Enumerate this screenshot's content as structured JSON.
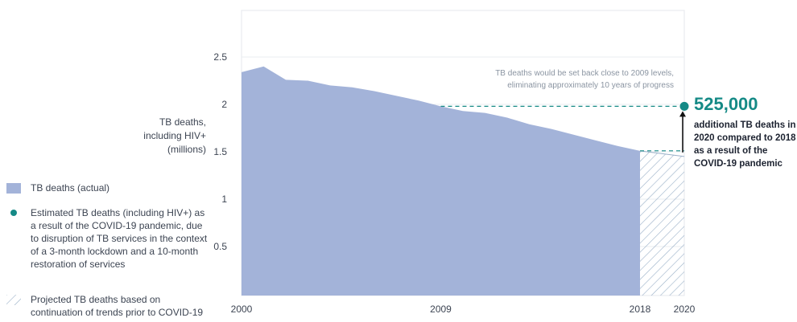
{
  "chart_data": {
    "type": "area",
    "ylabel": "TB deaths,\nincluding HIV+\n(millions)",
    "ylim": [
      0,
      3
    ],
    "y_ticks": [
      "0.5",
      "1",
      "1.5",
      "2",
      "2.5"
    ],
    "y_tick_values": [
      0.5,
      1,
      1.5,
      2,
      2.5
    ],
    "xlim": [
      2000,
      2020
    ],
    "x_ticks": [
      "2000",
      "2009",
      "2018",
      "2020"
    ],
    "x_tick_values": [
      2000,
      2009,
      2018,
      2020
    ],
    "grid": true,
    "series": [
      {
        "name": "TB deaths (actual)",
        "x": [
          2000,
          2001,
          2002,
          2003,
          2004,
          2005,
          2006,
          2007,
          2008,
          2009,
          2010,
          2011,
          2012,
          2013,
          2014,
          2015,
          2016,
          2017,
          2018
        ],
        "values": [
          2.34,
          2.4,
          2.26,
          2.25,
          2.2,
          2.18,
          2.14,
          2.09,
          2.04,
          1.98,
          1.93,
          1.91,
          1.86,
          1.79,
          1.74,
          1.68,
          1.62,
          1.56,
          1.51
        ]
      },
      {
        "name": "Projected TB deaths based on continuation of trends prior to COVID-19",
        "x": [
          2018,
          2020
        ],
        "values": [
          1.51,
          1.45
        ]
      },
      {
        "name": "Estimated TB deaths (including HIV+) as a result of the COVID-19 pandemic",
        "x": [
          2020
        ],
        "values": [
          1.98
        ]
      }
    ],
    "annotation_text": "TB deaths would be set back close to 2009 levels, eliminating approximately 10 years of progress",
    "callout_value": "525,000",
    "callout_text": "additional TB deaths in 2020 compared to 2018 as a result of the COVID-19 pandemic"
  },
  "legend": [
    {
      "key": "actual",
      "text": "TB deaths (actual)"
    },
    {
      "key": "estimated",
      "text": "Estimated TB deaths (including HIV+) as a result of the COVID-19 pandemic, due to disruption of TB services in the context of a 3-month lockdown and a 10-month restoration of services"
    },
    {
      "key": "projected",
      "text": "Projected TB deaths based on continuation of trends prior to COVID-19"
    }
  ],
  "colors": {
    "area": "#a3b3d9",
    "accent": "#158a86",
    "grid": "#e9ecf0",
    "hatch": "#9ab0c8"
  }
}
